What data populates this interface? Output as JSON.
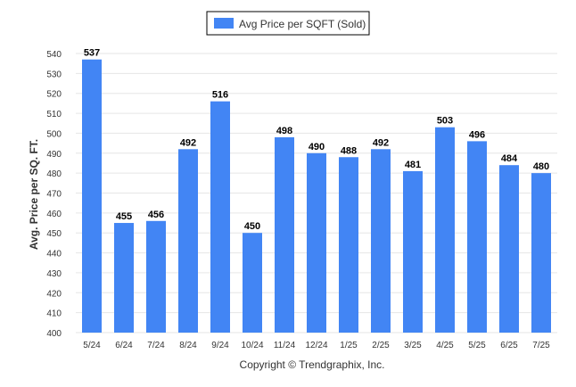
{
  "chart_data": {
    "type": "bar",
    "categories": [
      "5/24",
      "6/24",
      "7/24",
      "8/24",
      "9/24",
      "10/24",
      "11/24",
      "12/24",
      "1/25",
      "2/25",
      "3/25",
      "4/25",
      "5/25",
      "6/25",
      "7/25"
    ],
    "series": [
      {
        "name": "Avg Price per SQFT (Sold)",
        "values": [
          537,
          455,
          456,
          492,
          516,
          450,
          498,
          490,
          488,
          492,
          481,
          503,
          496,
          484,
          480
        ],
        "color": "#4285f4"
      }
    ],
    "ylabel": "Avg. Price per SQ. FT.",
    "xlabel": "",
    "ylim": [
      400,
      540
    ],
    "yticks": [
      400,
      410,
      420,
      430,
      440,
      450,
      460,
      470,
      480,
      490,
      500,
      510,
      520,
      530,
      540
    ],
    "grid": true,
    "legend_position": "top-center",
    "data_labels": true
  },
  "footer": {
    "copyright": "Copyright © Trendgraphix, Inc."
  }
}
